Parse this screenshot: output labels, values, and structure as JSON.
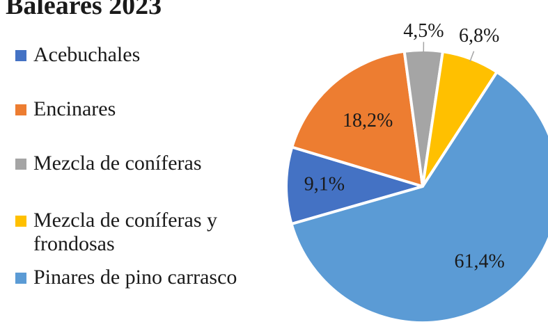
{
  "chart_data": {
    "type": "pie",
    "title": "Baleares 2023",
    "categories": [
      "Acebuchales",
      "Encinares",
      "Mezcla de coníferas",
      "Mezcla de coníferas y frondosas",
      "Pinares de pino carrasco"
    ],
    "values": [
      9.1,
      18.2,
      4.5,
      6.8,
      61.4
    ],
    "value_labels": [
      "9,1%",
      "18,2%",
      "4,5%",
      "6,8%",
      "61,4%"
    ],
    "colors": [
      "#4472c4",
      "#ed7d31",
      "#a5a5a5",
      "#ffc000",
      "#5b9bd5"
    ],
    "legend": "left"
  }
}
